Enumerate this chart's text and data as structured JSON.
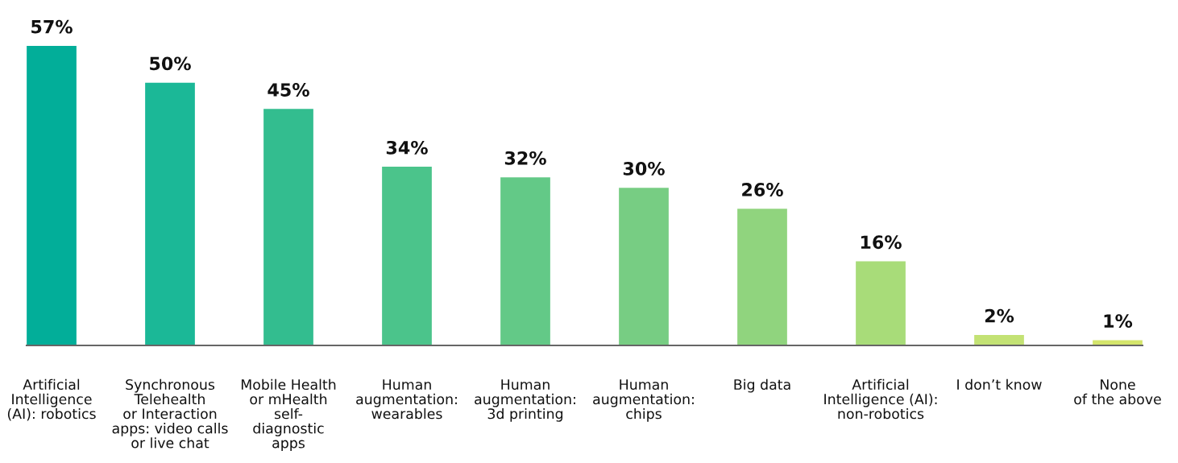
{
  "chart_data": {
    "type": "bar",
    "categories": [
      "Artificial\nIntelligence\n(AI): robotics",
      "Synchronous\nTelehealth\nor Interaction\napps: video calls\nor live chat",
      "Mobile Health\nor mHealth\nself-\ndiagnostic\napps",
      "Human\naugmentation:\nwearables",
      "Human\naugmentation:\n3d printing",
      "Human\naugmentation:\nchips",
      "Big data",
      "Artificial\nIntelligence (AI):\nnon-robotics",
      "I don’t know",
      "None\nof the above"
    ],
    "values": [
      57,
      50,
      45,
      34,
      32,
      30,
      26,
      16,
      2,
      1
    ],
    "colors": [
      "#02ae99",
      "#1bb897",
      "#33bd8f",
      "#4bc48b",
      "#63c987",
      "#77cd83",
      "#90d47e",
      "#a8dc79",
      "#c3e274",
      "#d4e56b"
    ],
    "value_labels": [
      "57%",
      "50%",
      "45%",
      "34%",
      "32%",
      "30%",
      "26%",
      "16%",
      "2%",
      "1%"
    ],
    "grid": false,
    "legend": false
  }
}
